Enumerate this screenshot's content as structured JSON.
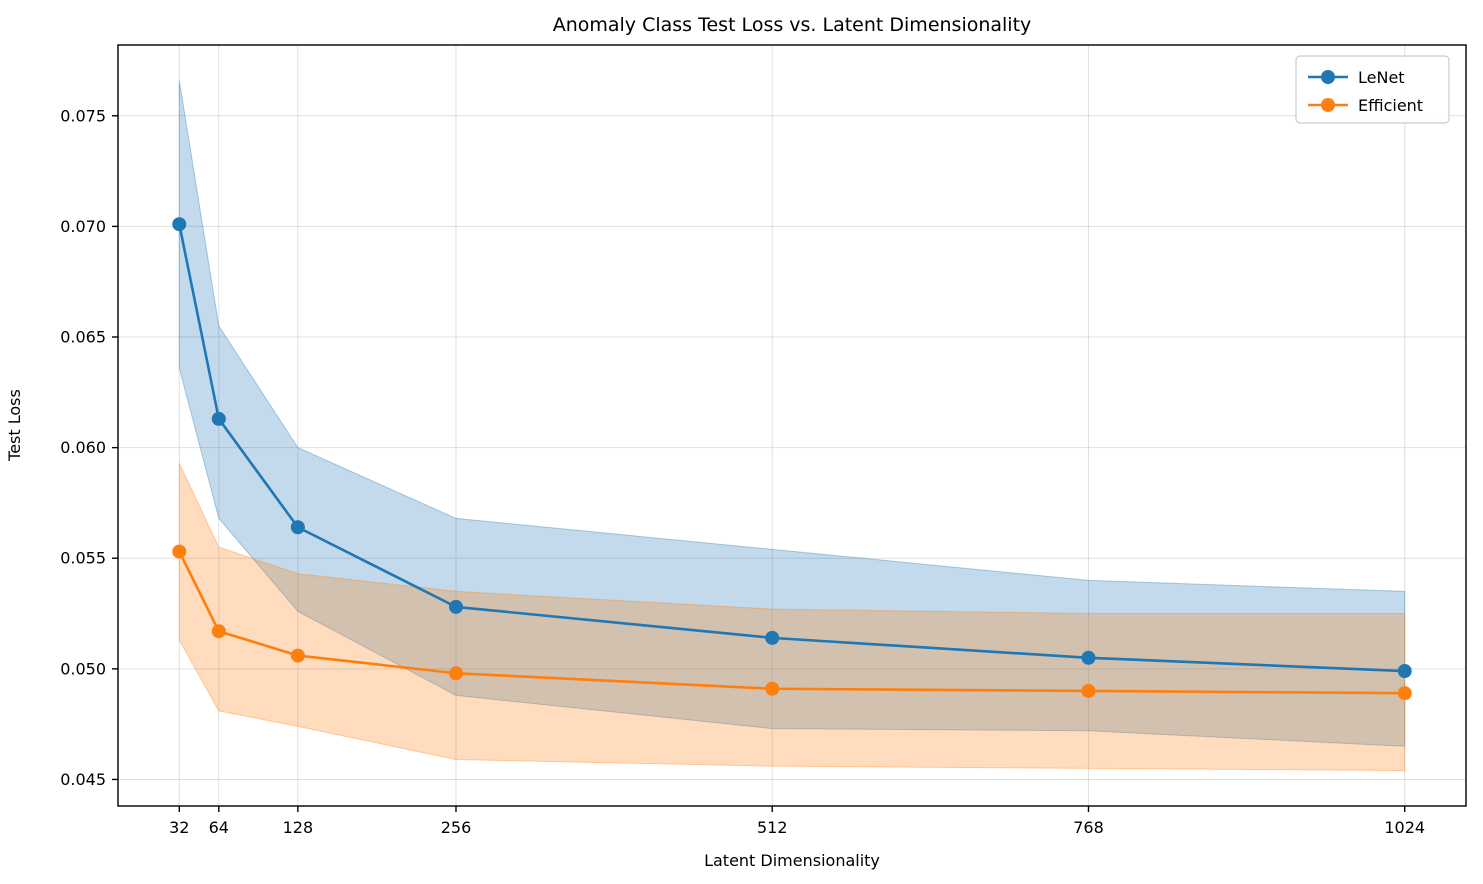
{
  "chart_data": {
    "type": "line",
    "title": "Anomaly Class Test Loss vs. Latent Dimensionality",
    "xlabel": "Latent Dimensionality",
    "ylabel": "Test Loss",
    "grid": true,
    "legend_position": "upper right",
    "x": [
      32,
      64,
      128,
      256,
      512,
      768,
      1024
    ],
    "x_tick_labels": [
      "32",
      "64",
      "128",
      "256",
      "512",
      "768",
      "1024"
    ],
    "y_tick_values": [
      0.045,
      0.05,
      0.055,
      0.06,
      0.065,
      0.07,
      0.075
    ],
    "y_tick_labels": [
      "0.045",
      "0.050",
      "0.055",
      "0.060",
      "0.065",
      "0.070",
      "0.075"
    ],
    "xlim": [
      -17.6,
      1073.6
    ],
    "ylim": [
      0.0438,
      0.0782
    ],
    "series": [
      {
        "name": "LeNet",
        "color": "#1f77b4",
        "values": [
          0.0701,
          0.0613,
          0.0564,
          0.0528,
          0.0514,
          0.0505,
          0.0499
        ],
        "band_upper": [
          0.0766,
          0.0655,
          0.06,
          0.0568,
          0.0554,
          0.054,
          0.0535
        ],
        "band_lower": [
          0.0636,
          0.0568,
          0.0526,
          0.0488,
          0.0473,
          0.0472,
          0.0465
        ]
      },
      {
        "name": "Efficient",
        "color": "#ff7f0e",
        "values": [
          0.0553,
          0.0517,
          0.0506,
          0.0498,
          0.0491,
          0.049,
          0.0489
        ],
        "band_upper": [
          0.0593,
          0.0555,
          0.0543,
          0.0535,
          0.0527,
          0.0525,
          0.0525
        ],
        "band_lower": [
          0.0513,
          0.0481,
          0.0474,
          0.0459,
          0.0456,
          0.0455,
          0.0454
        ]
      }
    ],
    "style": {
      "band_opacity": 0.27,
      "grid_color": "#b0b0b0",
      "spine_color": "#000000",
      "background": "#ffffff",
      "legend_border_color": "#cccccc"
    }
  }
}
